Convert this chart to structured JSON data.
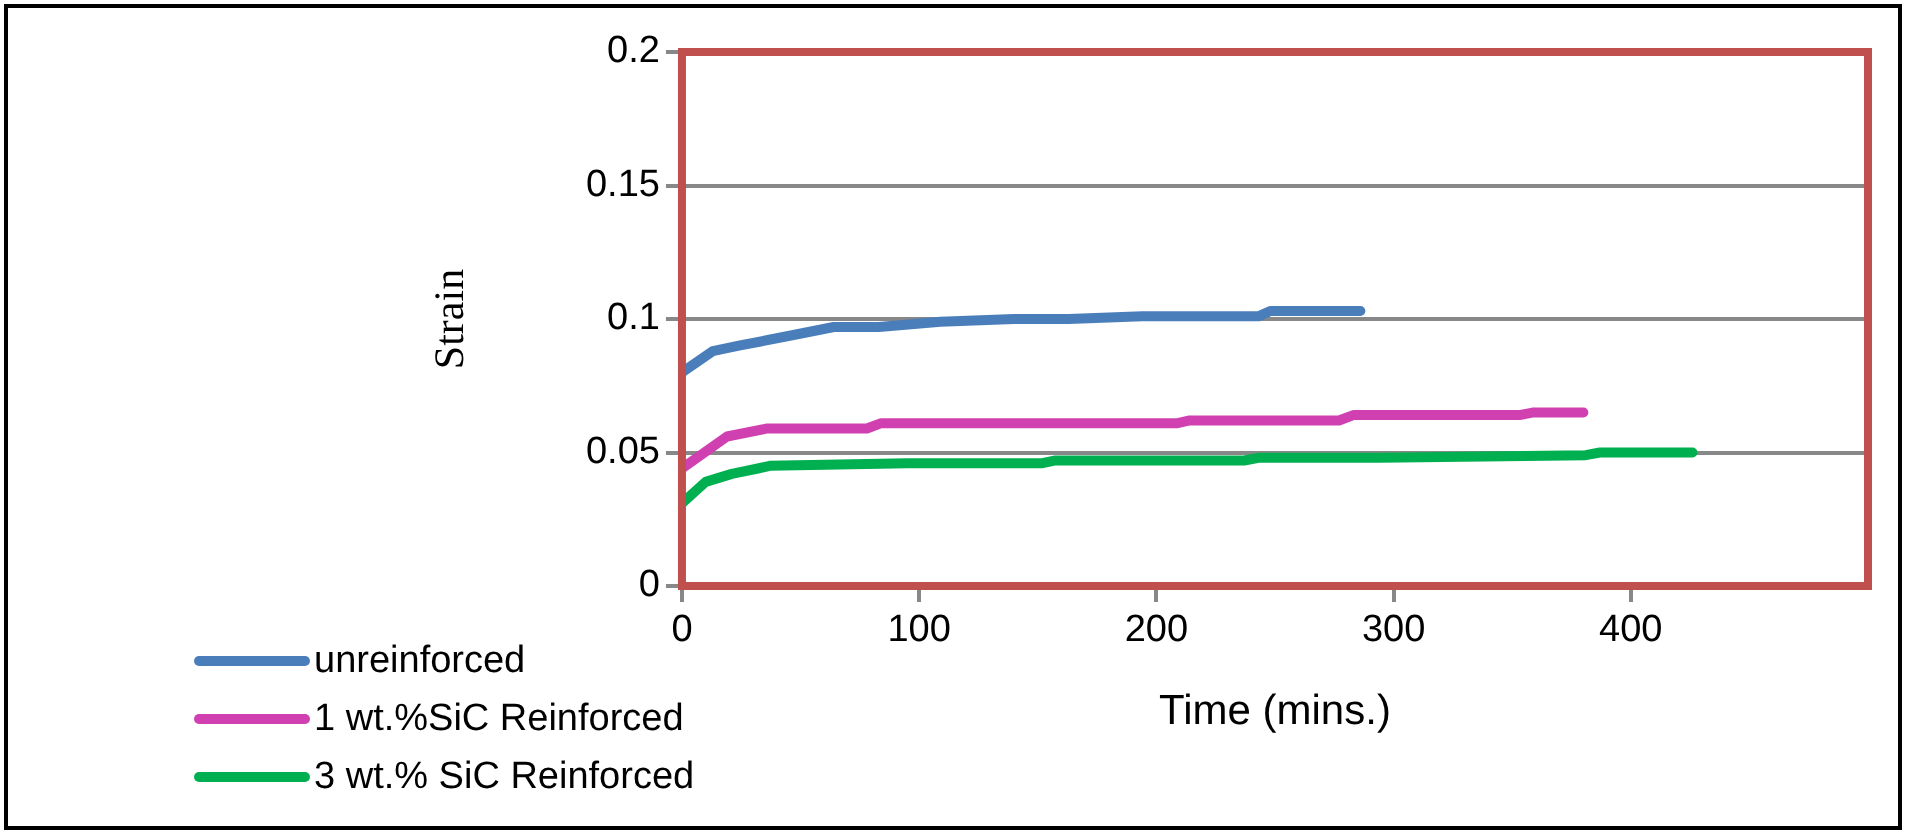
{
  "chart_data": {
    "type": "line",
    "xlabel": "Time (mins.)",
    "ylabel": "Strain",
    "xlim": [
      0,
      500
    ],
    "xticks": [
      0,
      100,
      200,
      300,
      400
    ],
    "ylim": [
      0,
      0.2
    ],
    "yticks": [
      0,
      0.05,
      0.1,
      0.15,
      0.2
    ],
    "grid": "y",
    "legend": "bottom left",
    "marker": "none",
    "line_style": "solid",
    "series": [
      {
        "name": "unreinforced",
        "color": "#4a7ebb",
        "x": [
          0,
          13,
          24,
          47,
          64,
          83,
          109,
          140,
          163,
          194,
          243,
          248,
          286
        ],
        "values": [
          0.08,
          0.088,
          0.09,
          0.094,
          0.097,
          0.097,
          0.099,
          0.1,
          0.1,
          0.101,
          0.101,
          0.103,
          0.103
        ]
      },
      {
        "name": "1 wt.%SiC Reinforced",
        "color": "#d040b0",
        "x": [
          0,
          19,
          36,
          78,
          84,
          140,
          209,
          214,
          277,
          283,
          353,
          359,
          380
        ],
        "values": [
          0.044,
          0.056,
          0.059,
          0.059,
          0.061,
          0.061,
          0.061,
          0.062,
          0.062,
          0.064,
          0.064,
          0.065,
          0.065
        ]
      },
      {
        "name": "3 wt.% SiC Reinforced",
        "color": "#00b050",
        "x": [
          0,
          10,
          21,
          32,
          37,
          95,
          152,
          157,
          237,
          243,
          294,
          381,
          387,
          426
        ],
        "values": [
          0.031,
          0.039,
          0.042,
          0.044,
          0.045,
          0.046,
          0.046,
          0.047,
          0.047,
          0.048,
          0.048,
          0.049,
          0.05,
          0.05
        ]
      }
    ]
  }
}
